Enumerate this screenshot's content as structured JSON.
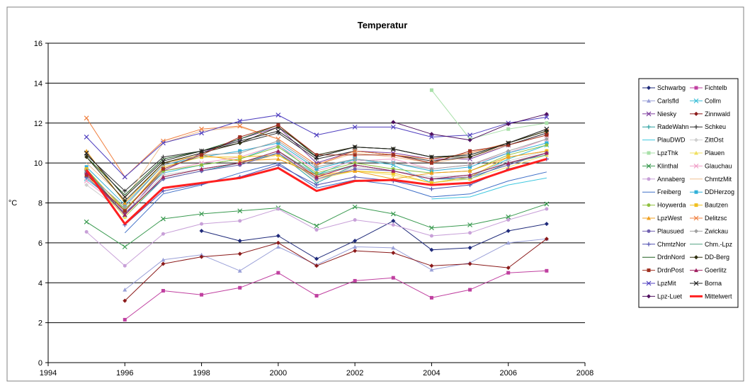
{
  "chart_data": {
    "type": "line",
    "title": "Temperatur",
    "ylabel": "°C",
    "xlabel": "",
    "xlim": [
      1994,
      2008
    ],
    "ylim": [
      0,
      16
    ],
    "xticks": [
      1994,
      1996,
      1998,
      2000,
      2002,
      2004,
      2006,
      2008
    ],
    "yticks": [
      0,
      2,
      4,
      6,
      8,
      10,
      12,
      14,
      16
    ],
    "grid": "horizontal",
    "legend_position": "right",
    "series": [
      {
        "name": "Schwarbg",
        "color": "#1f2a7a",
        "marker": "diamond",
        "x": [
          1998,
          1999,
          2000,
          2001,
          2002,
          2003,
          2004,
          2005,
          2006,
          2007
        ],
        "y": [
          6.6,
          6.1,
          6.35,
          5.2,
          6.1,
          7.1,
          5.65,
          5.75,
          6.6,
          6.95
        ]
      },
      {
        "name": "Fichtelb",
        "color": "#c040a0",
        "marker": "square",
        "x": [
          1996,
          1997,
          1998,
          1999,
          2000,
          2001,
          2002,
          2003,
          2004,
          2005,
          2006,
          2007
        ],
        "y": [
          2.15,
          3.6,
          3.4,
          3.75,
          4.5,
          3.35,
          4.1,
          4.25,
          3.25,
          3.65,
          4.5,
          4.6
        ]
      },
      {
        "name": "Carlsfld",
        "color": "#9aa0d8",
        "marker": "triangle",
        "x": [
          1996,
          1997,
          1998,
          1999,
          2000,
          2001,
          2002,
          2003,
          2004,
          2005,
          2006,
          2007
        ],
        "y": [
          3.65,
          5.15,
          5.4,
          4.6,
          5.8,
          4.9,
          5.8,
          5.75,
          4.65,
          5.0,
          6.0,
          6.2
        ]
      },
      {
        "name": "Collm",
        "color": "#40c0d8",
        "marker": "x",
        "x": [
          1995,
          1996,
          1997,
          1998,
          1999,
          2000,
          2001,
          2002,
          2003,
          2004,
          2005,
          2006,
          2007
        ],
        "y": [
          9.2,
          7.7,
          9.5,
          9.9,
          10.2,
          10.9,
          9.4,
          10.2,
          9.9,
          9.0,
          9.3,
          10.2,
          10.9
        ]
      },
      {
        "name": "Niesky",
        "color": "#8040a0",
        "marker": "x",
        "x": [
          1995,
          1996,
          1997,
          1998,
          1999,
          2000,
          2001,
          2002,
          2003,
          2004,
          2005,
          2006,
          2007
        ],
        "y": [
          9.6,
          7.4,
          9.6,
          10.5,
          11.2,
          11.8,
          10.0,
          10.6,
          10.5,
          10.2,
          10.2,
          10.9,
          11.5
        ]
      },
      {
        "name": "Zinnwald",
        "color": "#8b1a1a",
        "marker": "diamond",
        "x": [
          1996,
          1997,
          1998,
          1999,
          2000,
          2001,
          2002,
          2003,
          2004,
          2005,
          2006,
          2007
        ],
        "y": [
          3.1,
          4.95,
          5.3,
          5.45,
          6.0,
          4.85,
          5.6,
          5.5,
          4.85,
          4.95,
          4.75,
          6.2
        ]
      },
      {
        "name": "RadeWahn",
        "color": "#2aa0a0",
        "marker": "plus",
        "x": [
          1995,
          1996,
          1997,
          1998,
          1999,
          2000,
          2001,
          2002,
          2003,
          2004,
          2005,
          2006,
          2007
        ],
        "y": [
          9.5,
          7.3,
          9.2,
          9.6,
          10.0,
          10.5,
          9.0,
          9.9,
          9.6,
          9.2,
          9.2,
          10.0,
          10.5
        ]
      },
      {
        "name": "Schkeu",
        "color": "#303030",
        "marker": "plus",
        "x": [
          1995,
          1996,
          1997,
          1998,
          1999,
          2000,
          2001,
          2002,
          2003,
          2004,
          2005,
          2006,
          2007
        ],
        "y": [
          10.4,
          8.6,
          10.3,
          10.6,
          11.0,
          11.5,
          10.2,
          10.6,
          10.4,
          10.1,
          10.3,
          10.9,
          11.5
        ]
      },
      {
        "name": "PlauDWD",
        "color": "#40c8e0",
        "marker": "none",
        "x": [
          2004,
          2005,
          2006,
          2007
        ],
        "y": [
          8.2,
          8.3,
          8.9,
          9.25
        ]
      },
      {
        "name": "ZittOst",
        "color": "#d0d0d0",
        "marker": "diamond",
        "x": [
          1995,
          1996,
          1997,
          1998,
          1999,
          2000,
          2001,
          2002,
          2003,
          2004,
          2005,
          2006,
          2007
        ],
        "y": [
          8.9,
          7.5,
          9.4,
          9.7,
          10.0,
          10.6,
          9.1,
          9.8,
          9.6,
          9.3,
          9.4,
          10.1,
          10.6
        ]
      },
      {
        "name": "LpzThk",
        "color": "#a8e0a8",
        "marker": "square",
        "x": [
          2004,
          2005,
          2006,
          2007
        ],
        "y": [
          13.65,
          11.2,
          11.7,
          12.0
        ]
      },
      {
        "name": "Plauen",
        "color": "#f0e060",
        "marker": "triangle",
        "x": [
          1995,
          1996,
          1997,
          1998,
          1999,
          2000,
          2001,
          2002,
          2003,
          2004,
          2005,
          2006,
          2007
        ],
        "y": [
          9.4,
          7.3,
          9.3,
          9.7,
          10.0,
          10.4,
          9.2,
          9.6,
          9.4,
          9.0,
          9.2,
          9.8,
          10.4
        ]
      },
      {
        "name": "Klinthal",
        "color": "#3a9a50",
        "marker": "x",
        "x": [
          1995,
          1996,
          1997,
          1998,
          1999,
          2000,
          2001,
          2002,
          2003,
          2004,
          2005,
          2006,
          2007
        ],
        "y": [
          7.05,
          5.8,
          7.2,
          7.45,
          7.6,
          7.75,
          6.85,
          7.8,
          7.45,
          6.75,
          6.9,
          7.3,
          7.95
        ]
      },
      {
        "name": "Glauchau",
        "color": "#f0a0c8",
        "marker": "x",
        "x": [
          1995,
          1996,
          1997,
          1998,
          1999,
          2000,
          2001,
          2002,
          2003,
          2004,
          2005,
          2006,
          2007
        ],
        "y": [
          9.1,
          7.6,
          9.6,
          10.0,
          10.3,
          10.9,
          9.6,
          10.1,
          10.2,
          9.7,
          9.9,
          10.5,
          11.2
        ]
      },
      {
        "name": "Annaberg",
        "color": "#c8a0d8",
        "marker": "circle",
        "x": [
          1995,
          1996,
          1997,
          1998,
          1999,
          2000,
          2001,
          2002,
          2003,
          2004,
          2005,
          2006,
          2007
        ],
        "y": [
          6.55,
          4.85,
          6.45,
          6.95,
          7.1,
          7.7,
          6.65,
          7.15,
          6.9,
          6.35,
          6.5,
          7.15,
          7.7
        ]
      },
      {
        "name": "ChmtzMit",
        "color": "#f0c090",
        "marker": "none",
        "x": [
          1995,
          1996,
          1997,
          1998,
          1999,
          2000,
          2001,
          2002,
          2003,
          2004,
          2005,
          2006,
          2007
        ],
        "y": [
          10.0,
          8.2,
          11.0,
          11.6,
          11.8,
          11.2,
          9.9,
          10.5,
          10.3,
          10.0,
          10.3,
          10.9,
          11.4
        ]
      },
      {
        "name": "Freiberg",
        "color": "#4070c8",
        "marker": "none",
        "x": [
          1996,
          1997,
          1998,
          1999,
          2000,
          2001,
          2002,
          2003,
          2004,
          2005,
          2006,
          2007
        ],
        "y": [
          6.5,
          8.45,
          8.9,
          9.5,
          10.0,
          8.75,
          9.15,
          8.9,
          8.3,
          8.45,
          9.1,
          9.55
        ]
      },
      {
        "name": "DDHerzog",
        "color": "#30b0d8",
        "marker": "square",
        "x": [
          1995,
          1996,
          1997,
          1998,
          1999,
          2000,
          2001,
          2002,
          2003,
          2004,
          2005,
          2006,
          2007
        ],
        "y": [
          9.8,
          7.9,
          9.9,
          10.3,
          10.6,
          11.0,
          9.7,
          10.2,
          10.0,
          9.6,
          9.8,
          10.5,
          11.0
        ]
      },
      {
        "name": "Hoywerda",
        "color": "#90c040",
        "marker": "circle",
        "x": [
          1995,
          1996,
          1997,
          1998,
          1999,
          2000,
          2001,
          2002,
          2003,
          2004,
          2005,
          2006,
          2007
        ],
        "y": [
          9.6,
          7.7,
          9.6,
          9.9,
          10.2,
          10.8,
          9.5,
          10.0,
          9.7,
          9.5,
          9.6,
          10.4,
          10.9
        ]
      },
      {
        "name": "Bautzen",
        "color": "#f0c020",
        "marker": "square",
        "x": [
          1995,
          1996,
          1997,
          1998,
          1999,
          2000,
          2001,
          2002,
          2003,
          2004,
          2005,
          2006,
          2007
        ],
        "y": [
          9.7,
          7.6,
          9.8,
          10.3,
          10.3,
          10.4,
          9.3,
          9.6,
          9.5,
          9.0,
          9.3,
          10.3,
          10.6
        ]
      },
      {
        "name": "LpzWest",
        "color": "#f0a020",
        "marker": "triangle",
        "x": [
          1995,
          1996,
          1997,
          1998,
          1999,
          2000,
          2001,
          2002,
          2003,
          2004,
          2005,
          2006,
          2007
        ],
        "y": [
          10.6,
          8.0,
          10.0,
          10.4,
          10.1,
          10.2,
          9.4,
          9.6,
          9.2,
          9.5,
          9.6,
          10.3,
          10.6
        ]
      },
      {
        "name": "Delitzsc",
        "color": "#f08040",
        "marker": "x",
        "x": [
          1995,
          1996,
          1997,
          1998,
          1999,
          2000,
          2001,
          2002,
          2003,
          2004,
          2005,
          2006,
          2007
        ],
        "y": [
          12.25,
          9.3,
          11.1,
          11.7,
          11.85,
          11.2,
          9.9,
          10.6,
          10.4,
          10.2,
          10.5,
          11.0,
          11.6
        ]
      },
      {
        "name": "Plausued",
        "color": "#7060b0",
        "marker": "circle",
        "x": [
          1995,
          1996,
          1997,
          1998,
          1999,
          2000,
          2001,
          2002,
          2003,
          2004,
          2005,
          2006,
          2007
        ],
        "y": [
          9.3,
          7.5,
          9.2,
          9.6,
          9.9,
          10.5,
          9.2,
          9.7,
          9.6,
          9.2,
          9.3,
          9.9,
          10.5
        ]
      },
      {
        "name": "Zwickau",
        "color": "#a0a0a0",
        "marker": "diamond",
        "x": [
          1995,
          1996,
          1997,
          1998,
          1999,
          2000,
          2001,
          2002,
          2003,
          2004,
          2005,
          2006,
          2007
        ],
        "y": [
          9.5,
          7.8,
          9.9,
          10.4,
          10.5,
          11.1,
          9.8,
          10.2,
          10.0,
          9.7,
          9.9,
          10.6,
          11.2
        ]
      },
      {
        "name": "ChmtzNor",
        "color": "#5050b0",
        "marker": "plus",
        "x": [
          1995,
          1996,
          1997,
          1998,
          1999,
          2000,
          2001,
          2002,
          2003,
          2004,
          2005,
          2006,
          2007
        ],
        "y": [
          9.6,
          6.9,
          8.6,
          8.95,
          9.3,
          9.9,
          8.9,
          9.3,
          9.1,
          8.7,
          8.9,
          9.7,
          10.2
        ]
      },
      {
        "name": "Chm.-Lpz",
        "color": "#50a080",
        "marker": "none",
        "x": [
          1995,
          1996,
          1997,
          1998,
          1999,
          2000,
          2001,
          2002,
          2003,
          2004,
          2005,
          2006,
          2007
        ],
        "y": [
          9.7,
          7.4,
          9.3,
          9.7,
          10.0,
          10.6,
          9.4,
          9.9,
          9.6,
          9.2,
          9.4,
          10.0,
          10.4
        ]
      },
      {
        "name": "DrdnNord",
        "color": "#206020",
        "marker": "none",
        "x": [
          1995,
          1996,
          1997,
          1998,
          1999,
          2000,
          2001,
          2002,
          2003,
          2004,
          2005,
          2006,
          2007
        ],
        "y": [
          10.3,
          8.4,
          10.2,
          10.6,
          11.2,
          11.9,
          10.3,
          10.8,
          10.7,
          10.3,
          10.4,
          11.0,
          11.6
        ]
      },
      {
        "name": "DD-Berg",
        "color": "#303010",
        "marker": "diamond",
        "x": [
          1995,
          1996,
          1997,
          1998,
          1999,
          2000,
          2001,
          2002,
          2003,
          2004,
          2005,
          2006,
          2007
        ],
        "y": [
          10.3,
          8.1,
          10.0,
          10.5,
          11.0,
          11.8,
          10.4,
          10.8,
          10.7,
          10.3,
          10.3,
          11.0,
          11.6
        ]
      },
      {
        "name": "DrdnPost",
        "color": "#a03020",
        "marker": "square",
        "x": [
          1995,
          1996,
          1997,
          1998,
          1999,
          2000,
          2001,
          2002,
          2003,
          2004,
          2005,
          2006,
          2007
        ],
        "y": [
          9.4,
          7.6,
          9.7,
          10.4,
          11.3,
          11.9,
          10.4,
          10.4,
          10.4,
          10.0,
          10.6,
          10.9,
          11.4
        ]
      },
      {
        "name": "Goerlitz",
        "color": "#a02060",
        "marker": "triangle",
        "x": [
          1995,
          1996,
          1997,
          1998,
          1999,
          2000,
          2001,
          2002,
          2003,
          2004,
          2005,
          2006,
          2007
        ],
        "y": [
          9.5,
          7.4,
          9.3,
          9.7,
          10.0,
          10.6,
          9.3,
          9.9,
          9.6,
          9.2,
          9.4,
          10.0,
          10.5
        ]
      },
      {
        "name": "LpzMit",
        "color": "#5040c0",
        "marker": "x",
        "x": [
          1995,
          1996,
          1997,
          1998,
          1999,
          2000,
          2001,
          2002,
          2003,
          2004,
          2005,
          2006,
          2007
        ],
        "y": [
          11.3,
          9.3,
          11.0,
          11.5,
          12.1,
          12.4,
          11.4,
          11.8,
          11.8,
          11.3,
          11.4,
          12.0,
          12.3
        ]
      },
      {
        "name": "Borna",
        "color": "#202020",
        "marker": "x",
        "x": [
          1995,
          1996,
          1997,
          1998,
          1999,
          2000,
          2001,
          2002,
          2003,
          2004,
          2005,
          2006,
          2007
        ],
        "y": [
          10.5,
          8.3,
          10.1,
          10.6,
          11.1,
          11.6,
          10.3,
          10.8,
          10.7,
          10.3,
          10.4,
          11.0,
          11.7
        ]
      },
      {
        "name": "Lpz-Luet",
        "color": "#501060",
        "marker": "diamond",
        "x": [
          2003,
          2004,
          2005,
          2006,
          2007
        ],
        "y": [
          12.05,
          11.45,
          11.15,
          11.95,
          12.45
        ]
      },
      {
        "name": "Mittelwert",
        "color": "#ff2020",
        "marker": "none",
        "thick": true,
        "x": [
          1995,
          1996,
          1997,
          1998,
          1999,
          2000,
          2001,
          2002,
          2003,
          2004,
          2005,
          2006,
          2007
        ],
        "y": [
          9.65,
          6.95,
          8.75,
          9.0,
          9.25,
          9.75,
          8.6,
          9.1,
          9.15,
          8.9,
          9.0,
          9.65,
          10.2
        ]
      }
    ]
  }
}
